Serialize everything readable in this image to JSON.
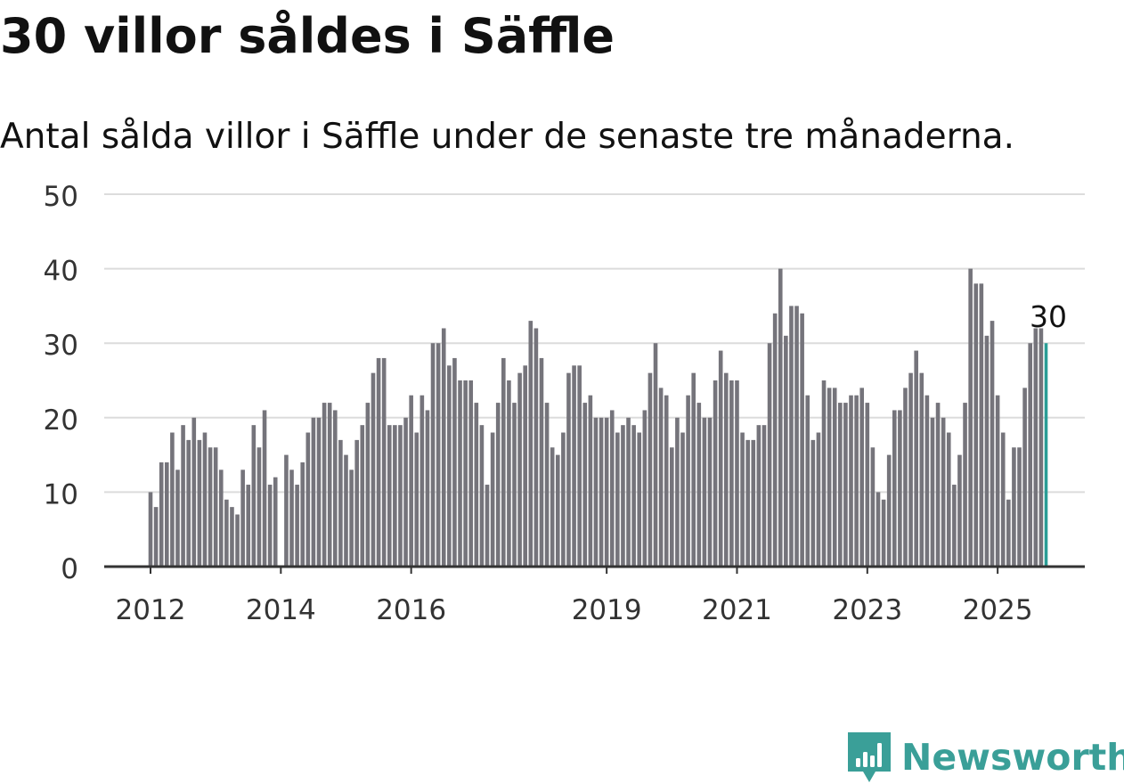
{
  "title": "30 villor såldes i Säffle",
  "subtitle": "Antal sålda villor i Säffle under de senaste tre månaderna.",
  "logo": {
    "text": "Newsworthy",
    "icon": "bar-chart-badge-icon",
    "color": "#3a9f98"
  },
  "colors": {
    "bar": "#75747b",
    "highlight": "#2a9d96",
    "grid": "#dcdcdc",
    "axis": "#333333"
  },
  "chart_data": {
    "type": "bar",
    "x_start": "2012-01",
    "ylim": [
      0,
      50
    ],
    "yticks": [
      0,
      10,
      20,
      30,
      40,
      50
    ],
    "xticks": [
      "2012",
      "2014",
      "2016",
      "2019",
      "2021",
      "2023",
      "2025"
    ],
    "grid": true,
    "highlight_last": true,
    "last_label": "30",
    "values": [
      10,
      8,
      14,
      14,
      18,
      13,
      19,
      17,
      20,
      17,
      18,
      16,
      16,
      13,
      9,
      8,
      7,
      13,
      11,
      19,
      16,
      21,
      11,
      12,
      0,
      15,
      13,
      11,
      14,
      18,
      20,
      20,
      22,
      22,
      21,
      17,
      15,
      13,
      17,
      19,
      22,
      26,
      28,
      28,
      19,
      19,
      19,
      20,
      23,
      18,
      23,
      21,
      30,
      30,
      32,
      27,
      28,
      25,
      25,
      25,
      22,
      19,
      11,
      18,
      22,
      28,
      25,
      22,
      26,
      27,
      33,
      32,
      28,
      22,
      16,
      15,
      18,
      26,
      27,
      27,
      22,
      23,
      20,
      20,
      20,
      21,
      18,
      19,
      20,
      19,
      18,
      21,
      26,
      30,
      24,
      23,
      16,
      20,
      18,
      23,
      26,
      22,
      20,
      20,
      25,
      29,
      26,
      25,
      25,
      18,
      17,
      17,
      19,
      19,
      30,
      34,
      40,
      31,
      35,
      35,
      34,
      23,
      17,
      18,
      25,
      24,
      24,
      22,
      22,
      23,
      23,
      24,
      22,
      16,
      10,
      9,
      15,
      21,
      21,
      24,
      26,
      29,
      26,
      23,
      20,
      22,
      20,
      18,
      11,
      15,
      22,
      40,
      38,
      38,
      31,
      33,
      23,
      18,
      9,
      16,
      16,
      24,
      30,
      32,
      32,
      30
    ]
  }
}
